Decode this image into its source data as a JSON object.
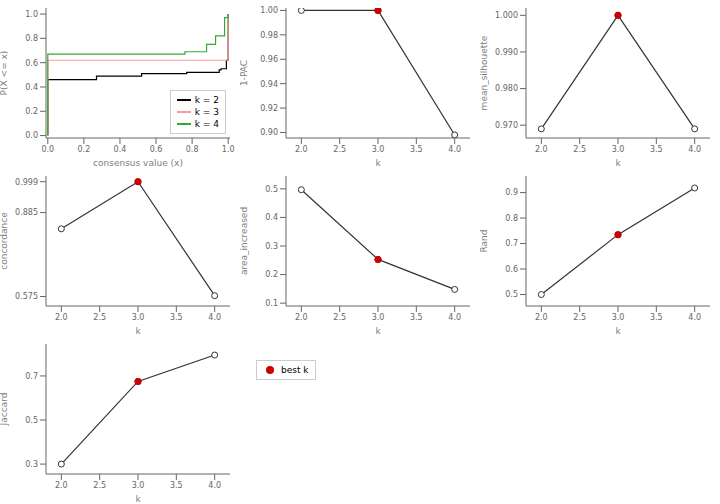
{
  "chart_data": [
    {
      "type": "step",
      "xlabel": "consensus value (x)",
      "ylabel": "P(X <= x)",
      "xlim": [
        -0.01,
        1.01
      ],
      "ylim": [
        -0.02,
        1.05
      ],
      "xticks": [
        {
          "value": 0.0,
          "label": "0.0"
        },
        0.2,
        0.4,
        0.6,
        0.8,
        {
          "value": 1.0,
          "label": "1.0"
        }
      ],
      "yticks": [
        {
          "value": 0.0,
          "label": "0.0"
        },
        0.2,
        0.4,
        0.6,
        0.8,
        {
          "value": 1.0,
          "label": "1.0"
        }
      ],
      "legend": "lower right",
      "series": [
        {
          "name": "k = 2",
          "color": "#000000",
          "x": [
            0.0,
            0.0,
            0.01,
            0.25,
            0.27,
            0.5,
            0.52,
            0.75,
            0.77,
            0.87,
            0.88,
            0.95,
            0.96,
            0.99,
            1.0,
            1.0
          ],
          "values": [
            0.0,
            0.46,
            0.46,
            0.46,
            0.49,
            0.49,
            0.51,
            0.51,
            0.52,
            0.52,
            0.52,
            0.54,
            0.55,
            0.62,
            0.62,
            1.0
          ]
        },
        {
          "name": "k = 3",
          "color": "#FF9999",
          "x": [
            0.0,
            0.0,
            0.01,
            0.99,
            1.0,
            1.0
          ],
          "values": [
            0.0,
            0.62,
            0.62,
            0.62,
            0.62,
            1.0
          ]
        },
        {
          "name": "k = 4",
          "color": "#33AA33",
          "x": [
            0.0,
            0.0,
            0.01,
            0.75,
            0.76,
            0.87,
            0.88,
            0.92,
            0.93,
            0.97,
            0.98,
            0.99,
            1.0,
            1.0
          ],
          "values": [
            0.0,
            0.67,
            0.67,
            0.67,
            0.69,
            0.69,
            0.75,
            0.75,
            0.82,
            0.82,
            0.97,
            0.97,
            0.99,
            1.0
          ]
        }
      ]
    },
    {
      "type": "line",
      "xlabel": "k",
      "ylabel": "1-PAC",
      "xlim": [
        1.8,
        4.2
      ],
      "xticks": [
        {
          "value": 2,
          "label": "2.0"
        },
        2.5,
        {
          "value": 3,
          "label": "3.0"
        },
        3.5,
        {
          "value": 4,
          "label": "4.0"
        }
      ],
      "ylim": [
        0.8955,
        1.002
      ],
      "yticks": [
        {
          "value": 0.9,
          "label": "0.90"
        },
        0.92,
        0.94,
        0.96,
        0.98,
        {
          "value": 1.0,
          "label": "1.00"
        }
      ],
      "x": [
        2,
        3,
        4
      ],
      "series": [
        {
          "type": "line",
          "color": "#333333",
          "marker": "open",
          "values": [
            1.0,
            1.0,
            0.898
          ]
        },
        {
          "name": "best k",
          "type": "scatter",
          "color": "#CC0000",
          "marker": "o",
          "values": [
            null,
            1.0,
            null
          ]
        }
      ]
    },
    {
      "type": "line",
      "xlabel": "k",
      "ylabel": "mean_silhouette",
      "xlim": [
        1.8,
        4.2
      ],
      "xticks": [
        {
          "value": 2,
          "label": "2.0"
        },
        2.5,
        {
          "value": 3,
          "label": "3.0"
        },
        3.5,
        {
          "value": 4,
          "label": "4.0"
        }
      ],
      "ylim": [
        0.9665,
        1.002
      ],
      "yticks": [
        {
          "value": 0.97,
          "label": "0.970"
        },
        {
          "value": 0.98,
          "label": "0.980"
        },
        {
          "value": 0.99,
          "label": "0.990"
        },
        {
          "value": 1.0,
          "label": "1.000"
        }
      ],
      "x": [
        2,
        3,
        4
      ],
      "series": [
        {
          "type": "line",
          "color": "#333333",
          "marker": "open",
          "values": [
            0.969,
            1.0,
            0.969
          ]
        },
        {
          "name": "best k",
          "type": "scatter",
          "color": "#CC0000",
          "marker": "o",
          "values": [
            null,
            1.0,
            null
          ]
        }
      ]
    },
    {
      "type": "line",
      "xlabel": "k",
      "ylabel": "concordance",
      "xlim": [
        1.8,
        4.2
      ],
      "xticks": [
        {
          "value": 2,
          "label": "2.0"
        },
        2.5,
        {
          "value": 3,
          "label": "3.0"
        },
        3.5,
        {
          "value": 4,
          "label": "4.0"
        }
      ],
      "ylim": [
        0.54,
        1.02
      ],
      "yticks": [
        0.575,
        0.885,
        0.999
      ],
      "x": [
        2,
        3,
        4
      ],
      "series": [
        {
          "type": "line",
          "color": "#333333",
          "marker": "open",
          "values": [
            0.825,
            0.999,
            0.578
          ]
        },
        {
          "name": "best k",
          "type": "scatter",
          "color": "#CC0000",
          "marker": "o",
          "values": [
            null,
            0.999,
            null
          ]
        }
      ]
    },
    {
      "type": "line",
      "xlabel": "k",
      "ylabel": "area_increased",
      "xlim": [
        1.8,
        4.2
      ],
      "xticks": [
        {
          "value": 2,
          "label": "2.0"
        },
        2.5,
        {
          "value": 3,
          "label": "3.0"
        },
        3.5,
        {
          "value": 4,
          "label": "4.0"
        }
      ],
      "ylim": [
        0.09,
        0.545
      ],
      "yticks": [
        0.1,
        0.2,
        0.3,
        0.4,
        0.5
      ],
      "x": [
        2,
        3,
        4
      ],
      "series": [
        {
          "type": "line",
          "color": "#333333",
          "marker": "open",
          "values": [
            0.497,
            0.253,
            0.148
          ]
        },
        {
          "name": "best k",
          "type": "scatter",
          "color": "#CC0000",
          "marker": "o",
          "values": [
            null,
            0.253,
            null
          ]
        }
      ]
    },
    {
      "type": "line",
      "xlabel": "k",
      "ylabel": "Rand",
      "xlim": [
        1.8,
        4.2
      ],
      "xticks": [
        {
          "value": 2,
          "label": "2.0"
        },
        2.5,
        {
          "value": 3,
          "label": "3.0"
        },
        3.5,
        {
          "value": 4,
          "label": "4.0"
        }
      ],
      "ylim": [
        0.455,
        0.965
      ],
      "yticks": [
        0.5,
        0.6,
        0.7,
        0.8,
        0.9
      ],
      "x": [
        2,
        3,
        4
      ],
      "series": [
        {
          "type": "line",
          "color": "#333333",
          "marker": "open",
          "values": [
            0.5,
            0.735,
            0.918
          ]
        },
        {
          "name": "best k",
          "type": "scatter",
          "color": "#CC0000",
          "marker": "o",
          "values": [
            null,
            0.735,
            null
          ]
        }
      ]
    },
    {
      "type": "line",
      "xlabel": "k",
      "ylabel": "Jaccard",
      "xlim": [
        1.8,
        4.2
      ],
      "xticks": [
        {
          "value": 2,
          "label": "2.0"
        },
        2.5,
        {
          "value": 3,
          "label": "3.0"
        },
        3.5,
        {
          "value": 4,
          "label": "4.0"
        }
      ],
      "ylim": [
        0.255,
        0.845
      ],
      "yticks": [
        0.3,
        0.5,
        0.7
      ],
      "legend": "right",
      "x": [
        2,
        3,
        4
      ],
      "series": [
        {
          "type": "line",
          "color": "#333333",
          "marker": "open",
          "values": [
            0.3,
            0.675,
            0.795
          ]
        },
        {
          "name": "best k",
          "type": "scatter",
          "color": "#CC0000",
          "marker": "o",
          "values": [
            null,
            0.675,
            null
          ]
        }
      ]
    }
  ]
}
